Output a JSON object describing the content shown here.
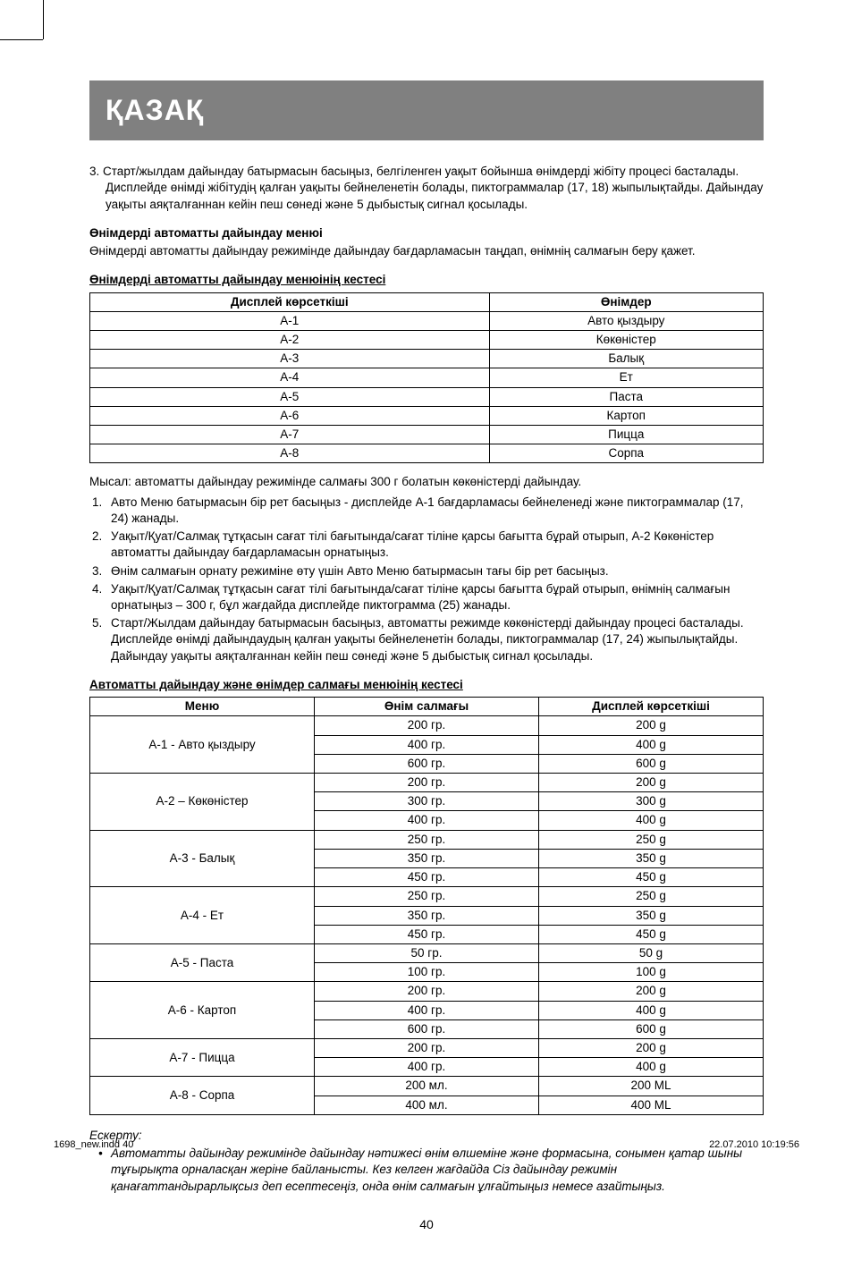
{
  "language_label": "ҚАЗАҚ",
  "intro_item": {
    "number": "3.",
    "text": "Старт/жылдам дайындау батырмасын басыңыз, белгіленген уақыт бойынша өнімдерді жібіту процесі басталады.  Дисплейде өнімді жібітудің қалған уақыты бейнеленетін болады, пиктограммалар (17, 18) жыпылықтайды. Дайындау уақыты аяқталғаннан кейін пеш сөнеді және 5 дыбыстық сигнал қосылады."
  },
  "section1_head": "Өнімдерді автоматты дайындау менюі",
  "section1_body": "Өнімдерді автоматты дайындау режимінде дайындау бағдарламасын таңдап, өнімнің салмағын беру қажет.",
  "table1_title": "Өнімдерді автоматты дайындау менюінің кестесі",
  "table1_headers": [
    "Дисплей көрсеткіші",
    "Өнімдер"
  ],
  "table1_rows": [
    [
      "A-1",
      "Авто қыздыру"
    ],
    [
      "A-2",
      "Көкөністер"
    ],
    [
      "A-3",
      "Балық"
    ],
    [
      "A-4",
      "Ет"
    ],
    [
      "A-5",
      "Паста"
    ],
    [
      "A-6",
      "Картоп"
    ],
    [
      "A-7",
      "Пицца"
    ],
    [
      "A-8",
      "Сорпа"
    ]
  ],
  "example_intro": "Мысал: автоматты дайындау режимінде салмағы 300 г болатын көкөністерді дайындау.",
  "example_items": [
    "Авто Меню батырмасын бір рет басыңыз - дисплейде А-1 бағдарламасы бейнеленеді және пиктограммалар (17, 24) жанады.",
    "Уақыт/Қуат/Салмақ тұтқасын сағат тілі бағытында/сағат тіліне қарсы бағытта бұрай отырып, А-2 Көкөністер автоматты дайындау бағдарламасын орнатыңыз.",
    "Өнім салмағын орнату режиміне өту үшін Авто Меню батырмасын тағы бір рет басыңыз.",
    "Уақыт/Қуат/Салмақ тұтқасын сағат тілі бағытында/сағат тіліне қарсы бағытта бұрай отырып, өнімнің салмағын орнатыңыз – 300 г, бұл жағдайда дисплейде пиктограмма (25) жанады.",
    "Старт/Жылдам дайындау батырмасын басыңыз, автоматты режимде көкөністерді дайындау процесі басталады. Дисплейде өнімді дайындаудың қалған уақыты бейнеленетін болады, пиктограммалар (17, 24) жыпылықтайды. Дайындау уақыты аяқталғаннан кейін пеш сөнеді және 5 дыбыстық сигнал қосылады."
  ],
  "table2_title": "Автоматты дайындау және өнімдер салмағы менюінің кестесі",
  "table2_headers": [
    "Меню",
    "Өнім салмағы",
    "Дисплей көрсеткіші"
  ],
  "table2_groups": [
    {
      "menu": "А-1 - Авто қыздыру",
      "rows": [
        [
          "200 гр.",
          "200 g"
        ],
        [
          "400 гр.",
          "400 g"
        ],
        [
          "600 гр.",
          "600 g"
        ]
      ]
    },
    {
      "menu": "А-2 – Көкөністер",
      "rows": [
        [
          "200 гр.",
          "200 g"
        ],
        [
          "300 гр.",
          "300 g"
        ],
        [
          "400 гр.",
          "400 g"
        ]
      ]
    },
    {
      "menu": "А-3 - Балық",
      "rows": [
        [
          "250 гр.",
          "250 g"
        ],
        [
          "350 гр.",
          "350 g"
        ],
        [
          "450 гр.",
          "450 g"
        ]
      ]
    },
    {
      "menu": "А-4 - Ет",
      "rows": [
        [
          "250 гр.",
          "250 g"
        ],
        [
          "350 гр.",
          "350 g"
        ],
        [
          "450 гр.",
          "450 g"
        ]
      ]
    },
    {
      "menu": "А-5 - Паста",
      "rows": [
        [
          "50 гр.",
          "50 g"
        ],
        [
          "100 гр.",
          "100 g"
        ]
      ]
    },
    {
      "menu": "А-6 - Картоп",
      "rows": [
        [
          "200 гр.",
          "200 g"
        ],
        [
          "400 гр.",
          "400 g"
        ],
        [
          "600 гр.",
          "600 g"
        ]
      ]
    },
    {
      "menu": "А-7 - Пицца",
      "rows": [
        [
          "200 гр.",
          "200 g"
        ],
        [
          "400 гр.",
          "400 g"
        ]
      ]
    },
    {
      "menu": "А-8 - Сорпа",
      "rows": [
        [
          "200 мл.",
          "200 ML"
        ],
        [
          "400 мл.",
          "400 ML"
        ]
      ]
    }
  ],
  "note_head": "Ескерту:",
  "note_body": "Автоматты дайындау режимінде дайындау нәтижесі өнім өлшеміне және формасына, сонымен қатар шыны тұғырықта орналасқан жеріне байланысты. Кез келген жағдайда Сіз дайындау режимін қанағаттандырарлықсыз деп есептесеңіз, онда  өнім салмағын ұлғайтыңыз немесе азайтыңыз.",
  "page_number": "40",
  "footer_left": "1698_new.indd   40",
  "footer_right": "22.07.2010   10:19:56",
  "colors": {
    "bar_bg": "#808080",
    "bar_text": "#ffffff",
    "text": "#000000",
    "page_bg": "#ffffff"
  }
}
